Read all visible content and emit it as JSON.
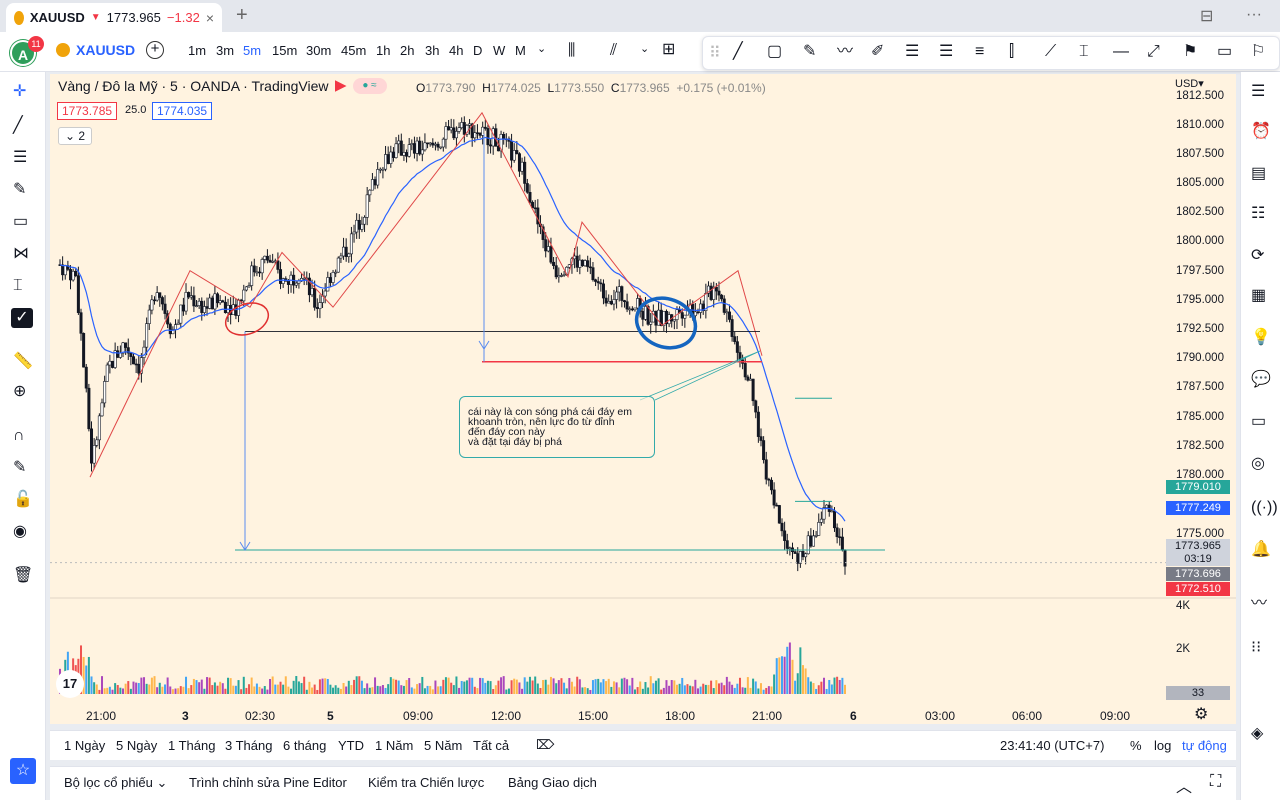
{
  "tab": {
    "symbol": "XAUUSD",
    "price": "1773.965",
    "change": "−1.32",
    "close": "×"
  },
  "topbar": {
    "avatar": "A",
    "badge": "11",
    "symbol": "XAUUSD",
    "intervals": [
      "1m",
      "3m",
      "5m",
      "15m",
      "30m",
      "45m",
      "1h",
      "2h",
      "3h",
      "4h",
      "D",
      "W",
      "M"
    ],
    "active_interval": "5m"
  },
  "legend": {
    "title": "Vàng / Đô la Mỹ · 5 · OANDA · TradingView",
    "o": "1773.790",
    "h": "1774.025",
    "l": "1773.550",
    "c": "1773.965",
    "chg": "+0.175 (+0.01%)",
    "o_lbl": "O",
    "h_lbl": "H",
    "l_lbl": "L",
    "c_lbl": "C",
    "bid": "1773.785",
    "spread": "25.0",
    "ask": "1774.035",
    "collapse": "2"
  },
  "yaxis": {
    "currency": "USD",
    "labels": [
      "1812.500",
      "1810.000",
      "1807.500",
      "1805.000",
      "1802.500",
      "1800.000",
      "1797.500",
      "1795.000",
      "1792.500",
      "1790.000",
      "1787.500",
      "1785.000",
      "1782.500",
      "1780.000",
      "1775.000"
    ],
    "vol_labels": [
      "4K",
      "2K"
    ]
  },
  "price_tags": [
    {
      "text": "1779.010",
      "color": "#26a69a"
    },
    {
      "text": "1777.249",
      "color": "#2962ff"
    },
    {
      "text": "1773.965",
      "color": "#cfd3dc"
    },
    {
      "text": "03:19",
      "color": "#cfd3dc"
    },
    {
      "text": "1773.696",
      "color": "#787b86"
    },
    {
      "text": "1772.510",
      "color": "#f23645"
    },
    {
      "text": "33",
      "color": "#b2b5be"
    }
  ],
  "xaxis": [
    "21:00",
    "3",
    "02:30",
    "5",
    "09:00",
    "12:00",
    "15:00",
    "18:00",
    "21:00",
    "6",
    "03:00",
    "06:00",
    "09:00"
  ],
  "note": {
    "lines": [
      "cái này là con sóng phá cái đáy em",
      "khoanh tròn, nên lực đo từ đỉnh",
      "đến đáy con này",
      "và đặt tại đáy bị phá"
    ]
  },
  "ranges": [
    "1 Ngày",
    "5 Ngày",
    "1 Tháng",
    "3 Tháng",
    "6 tháng",
    "YTD",
    "1 Năm",
    "5 Năm",
    "Tất cả"
  ],
  "clock": "23:41:40 (UTC+7)",
  "scale": {
    "pct": "%",
    "log": "log",
    "auto": "tự động"
  },
  "panels": [
    "Bộ lọc cổ phiếu",
    "Trình chỉnh sửa Pine Editor",
    "Kiểm tra Chiến lược",
    "Bảng Giao dịch"
  ],
  "chart_data": {
    "type": "candlestick",
    "symbol": "XAUUSD",
    "interval": "5",
    "last": 1773.965,
    "ylim": [
      1773.5,
      1812.5
    ],
    "x": [
      "21:00",
      "3",
      "02:30",
      "5",
      "09:00",
      "12:00",
      "15:00",
      "18:00",
      "21:00"
    ],
    "close_path": [
      1798.5,
      1797.5,
      1782,
      1790,
      1792,
      1790,
      1797,
      1793,
      1796,
      1795,
      1795.5,
      1795,
      1798,
      1799,
      1797,
      1798,
      1795,
      1798,
      1800,
      1803,
      1807,
      1808,
      1808,
      1808,
      1809,
      1810,
      1809.5,
      1809,
      1808,
      1806,
      1801,
      1798,
      1799,
      1798,
      1796,
      1796,
      1795,
      1794,
      1794,
      1795,
      1795,
      1797,
      1793,
      1789,
      1782,
      1777,
      1774,
      1776,
      1779,
      1774
    ]
  }
}
